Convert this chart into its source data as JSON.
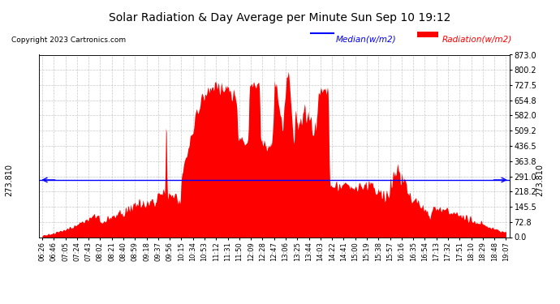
{
  "title": "Solar Radiation & Day Average per Minute Sun Sep 10 19:12",
  "copyright": "Copyright 2023 Cartronics.com",
  "median_label": "Median(w/m2)",
  "radiation_label": "Radiation(w/m2)",
  "median_value": 273.81,
  "median_text": "273.810",
  "y_min": 0.0,
  "y_max": 873.0,
  "y_ticks": [
    0.0,
    72.8,
    145.5,
    218.2,
    291.0,
    363.8,
    436.5,
    509.2,
    582.0,
    654.8,
    727.5,
    800.2,
    873.0
  ],
  "background_color": "#ffffff",
  "fill_color": "#ff0000",
  "line_color": "#0000ff",
  "grid_color": "#bbbbbb",
  "title_color": "#000000",
  "copyright_color": "#000000",
  "median_color": "#0000ff",
  "radiation_color": "#ff0000",
  "x_tick_labels": [
    "06:26",
    "06:46",
    "07:05",
    "07:24",
    "07:43",
    "08:02",
    "08:21",
    "08:40",
    "08:59",
    "09:18",
    "09:37",
    "09:56",
    "10:15",
    "10:34",
    "10:53",
    "11:12",
    "11:31",
    "11:50",
    "12:09",
    "12:28",
    "12:47",
    "13:06",
    "13:25",
    "13:44",
    "14:03",
    "14:22",
    "14:41",
    "15:00",
    "15:19",
    "15:38",
    "15:57",
    "16:16",
    "16:35",
    "16:54",
    "17:13",
    "17:32",
    "17:51",
    "18:10",
    "18:29",
    "18:48",
    "19:07"
  ]
}
